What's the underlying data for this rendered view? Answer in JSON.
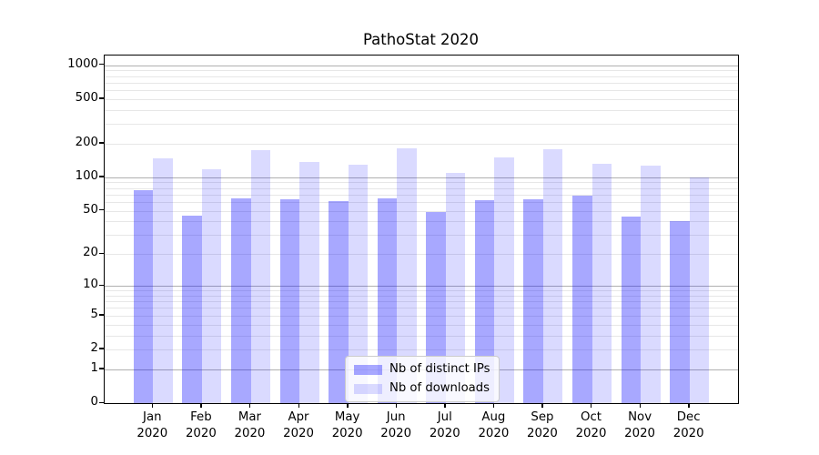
{
  "chart_data": {
    "type": "bar",
    "title": "PathoStat 2020",
    "x_months": [
      "Jan",
      "Feb",
      "Mar",
      "Apr",
      "May",
      "Jun",
      "Jul",
      "Aug",
      "Sep",
      "Oct",
      "Nov",
      "Dec"
    ],
    "x_year": "2020",
    "categories": [
      "Jan 2020",
      "Feb 2020",
      "Mar 2020",
      "Apr 2020",
      "May 2020",
      "Jun 2020",
      "Jul 2020",
      "Aug 2020",
      "Sep 2020",
      "Oct 2020",
      "Nov 2020",
      "Dec 2020"
    ],
    "series": [
      {
        "name": "Nb of distinct IPs",
        "color": "rgba(0,0,255,0.34)",
        "values": [
          76,
          45,
          65,
          64,
          61,
          65,
          49,
          62,
          63,
          68,
          44,
          40
        ]
      },
      {
        "name": "Nb of downloads",
        "color": "rgba(0,0,255,0.145)",
        "values": [
          147,
          118,
          176,
          136,
          130,
          182,
          110,
          152,
          180,
          132,
          127,
          100
        ]
      }
    ],
    "y_scale": "log1p",
    "y_ticks": [
      0,
      1,
      2,
      5,
      10,
      20,
      50,
      100,
      200,
      500,
      1000
    ],
    "y_tick_labels": [
      "0",
      "1",
      "2",
      "5",
      "10",
      "20",
      "50",
      "100",
      "200",
      "500",
      "1000"
    ],
    "y_major_gridlines": [
      1,
      10,
      100,
      1000
    ],
    "y_minor_gridlines": [
      3,
      4,
      6,
      7,
      8,
      9,
      30,
      40,
      60,
      70,
      80,
      90,
      300,
      400,
      600,
      700,
      800,
      900
    ],
    "y_axis_max": 1216,
    "grid": true,
    "legend_position": "lower center",
    "colors": {
      "major_grid": "#b0b0b0",
      "minor_grid": "#e7e7e7",
      "axis": "#000000"
    }
  }
}
